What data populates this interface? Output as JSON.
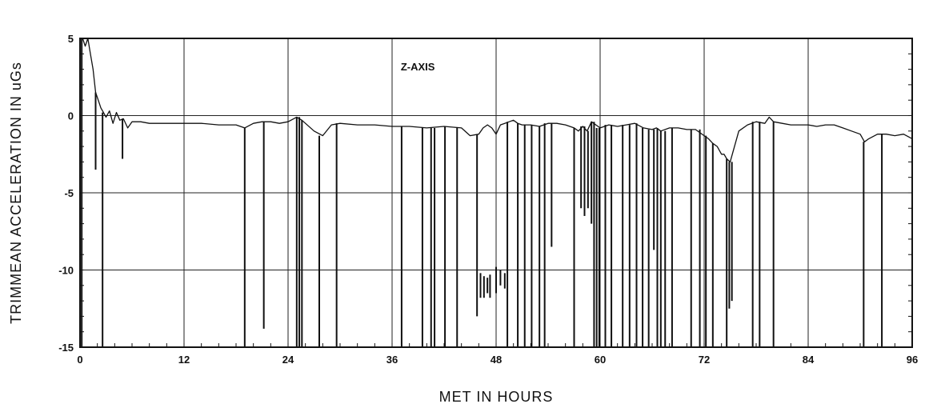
{
  "chart_data": {
    "type": "line",
    "title": "",
    "annotation": "Z-AXIS",
    "xlabel": "MET IN HOURS",
    "ylabel": "TRIMMEAN ACCELERATION IN uGs",
    "xlim": [
      0,
      96
    ],
    "ylim": [
      -15,
      5
    ],
    "xticks": [
      0,
      12,
      24,
      36,
      48,
      60,
      72,
      84,
      96
    ],
    "yticks": [
      5,
      0,
      -5,
      -10,
      -15
    ],
    "grid": true,
    "legend": "none",
    "series": [
      {
        "values_x": [
          0.3,
          0.6,
          0.9,
          1.2,
          1.5,
          1.8,
          2.1,
          2.4,
          2.7,
          3.0,
          3.4,
          3.8,
          4.2,
          4.6,
          5.0,
          5.5,
          6.0,
          7.0,
          8.0,
          10.0,
          12.0,
          14.0,
          16.0,
          18.0,
          19.0,
          20.0,
          21.0,
          22.0,
          23.0,
          24.0,
          25.0,
          25.6,
          26.0,
          27.0,
          28.0,
          29.0,
          30.0,
          32.0,
          34.0,
          36.0,
          38.0,
          40.0,
          42.0,
          44.0,
          45.0,
          46.0,
          46.5,
          47.0,
          47.5,
          48.0,
          48.5,
          49.0,
          49.5,
          50.0,
          50.5,
          51.0,
          52.0,
          53.0,
          54.0,
          55.0,
          56.0,
          57.0,
          57.5,
          58.0,
          58.5,
          59.0,
          60.0,
          61.0,
          62.0,
          63.0,
          64.0,
          65.0,
          66.0,
          66.5,
          67.0,
          68.0,
          69.0,
          70.0,
          71.0,
          72.0,
          72.5,
          73.0,
          73.5,
          74.0,
          74.3,
          74.6,
          75.0,
          76.0,
          77.0,
          78.0,
          79.0,
          79.5,
          80.0,
          81.0,
          82.0,
          83.0,
          84.0,
          85.0,
          86.0,
          87.0,
          88.0,
          89.0,
          90.0,
          90.5,
          91.0,
          92.0,
          93.0,
          94.0,
          95.0,
          96.0
        ],
        "values_y": [
          5.0,
          4.5,
          5.0,
          4.0,
          3.0,
          1.5,
          1.0,
          0.5,
          0.2,
          -0.1,
          0.3,
          -0.5,
          0.2,
          -0.3,
          -0.2,
          -0.8,
          -0.4,
          -0.4,
          -0.5,
          -0.5,
          -0.5,
          -0.5,
          -0.6,
          -0.6,
          -0.8,
          -0.5,
          -0.4,
          -0.4,
          -0.5,
          -0.4,
          -0.1,
          -0.3,
          -0.5,
          -1.0,
          -1.3,
          -0.6,
          -0.5,
          -0.6,
          -0.6,
          -0.7,
          -0.7,
          -0.8,
          -0.7,
          -0.8,
          -1.3,
          -1.2,
          -0.8,
          -0.6,
          -0.8,
          -1.2,
          -0.6,
          -0.5,
          -0.4,
          -0.3,
          -0.5,
          -0.6,
          -0.6,
          -0.7,
          -0.5,
          -0.5,
          -0.6,
          -0.8,
          -1.0,
          -0.7,
          -1.0,
          -0.4,
          -0.8,
          -0.6,
          -0.7,
          -0.6,
          -0.5,
          -0.8,
          -0.9,
          -0.8,
          -1.0,
          -0.8,
          -0.8,
          -0.9,
          -0.9,
          -1.3,
          -1.5,
          -1.8,
          -2.0,
          -2.5,
          -2.5,
          -2.8,
          -3.0,
          -1.0,
          -0.6,
          -0.4,
          -0.5,
          -0.1,
          -0.4,
          -0.5,
          -0.6,
          -0.6,
          -0.6,
          -0.7,
          -0.6,
          -0.6,
          -0.8,
          -1.0,
          -1.2,
          -1.7,
          -1.5,
          -1.2,
          -1.2,
          -1.3,
          -1.2,
          -1.5
        ]
      }
    ],
    "spikes": [
      {
        "x": 0.2,
        "y": -15
      },
      {
        "x": 1.8,
        "y": -3.5
      },
      {
        "x": 2.6,
        "y": -15
      },
      {
        "x": 4.9,
        "y": -2.8
      },
      {
        "x": 19.0,
        "y": -15
      },
      {
        "x": 21.2,
        "y": -13.8
      },
      {
        "x": 25.0,
        "y": -15
      },
      {
        "x": 25.3,
        "y": -15
      },
      {
        "x": 25.6,
        "y": -15
      },
      {
        "x": 27.6,
        "y": -15
      },
      {
        "x": 29.6,
        "y": -15
      },
      {
        "x": 37.1,
        "y": -15
      },
      {
        "x": 39.5,
        "y": -15
      },
      {
        "x": 40.5,
        "y": -15
      },
      {
        "x": 40.9,
        "y": -15
      },
      {
        "x": 42.1,
        "y": -15
      },
      {
        "x": 43.5,
        "y": -15
      },
      {
        "x": 45.8,
        "y": -13.0
      },
      {
        "x": 46.2,
        "y": -11.8,
        "y0": -10.2
      },
      {
        "x": 46.6,
        "y": -11.8,
        "y0": -10.4
      },
      {
        "x": 47.0,
        "y": -11.5,
        "y0": -10.5
      },
      {
        "x": 47.3,
        "y": -11.8,
        "y0": -10.3
      },
      {
        "x": 48.0,
        "y": -11.5,
        "y0": -9.8
      },
      {
        "x": 48.5,
        "y": -11.0,
        "y0": -10.0
      },
      {
        "x": 49.0,
        "y": -11.2,
        "y0": -10.2
      },
      {
        "x": 49.3,
        "y": -15
      },
      {
        "x": 50.5,
        "y": -15
      },
      {
        "x": 51.3,
        "y": -15
      },
      {
        "x": 52.1,
        "y": -15
      },
      {
        "x": 53.0,
        "y": -15
      },
      {
        "x": 53.6,
        "y": -15
      },
      {
        "x": 54.4,
        "y": -8.5
      },
      {
        "x": 57.0,
        "y": -15
      },
      {
        "x": 57.8,
        "y": -6.0
      },
      {
        "x": 58.2,
        "y": -6.5
      },
      {
        "x": 58.6,
        "y": -6.0
      },
      {
        "x": 59.0,
        "y": -7.0
      },
      {
        "x": 59.3,
        "y": -15
      },
      {
        "x": 59.6,
        "y": -15
      },
      {
        "x": 59.9,
        "y": -15
      },
      {
        "x": 60.6,
        "y": -15
      },
      {
        "x": 61.3,
        "y": -15
      },
      {
        "x": 62.6,
        "y": -15
      },
      {
        "x": 63.4,
        "y": -15
      },
      {
        "x": 64.2,
        "y": -15
      },
      {
        "x": 64.9,
        "y": -15
      },
      {
        "x": 65.6,
        "y": -15
      },
      {
        "x": 66.2,
        "y": -8.7
      },
      {
        "x": 66.6,
        "y": -15
      },
      {
        "x": 67.0,
        "y": -15
      },
      {
        "x": 67.5,
        "y": -15
      },
      {
        "x": 68.3,
        "y": -15
      },
      {
        "x": 70.5,
        "y": -15
      },
      {
        "x": 71.5,
        "y": -15
      },
      {
        "x": 72.2,
        "y": -15
      },
      {
        "x": 73.0,
        "y": -15
      },
      {
        "x": 74.6,
        "y": -15
      },
      {
        "x": 74.9,
        "y": -12.5
      },
      {
        "x": 75.2,
        "y": -12.0
      },
      {
        "x": 77.6,
        "y": -15
      },
      {
        "x": 78.4,
        "y": -15
      },
      {
        "x": 80.0,
        "y": -15
      },
      {
        "x": 90.4,
        "y": -15
      },
      {
        "x": 92.5,
        "y": -15
      }
    ]
  }
}
